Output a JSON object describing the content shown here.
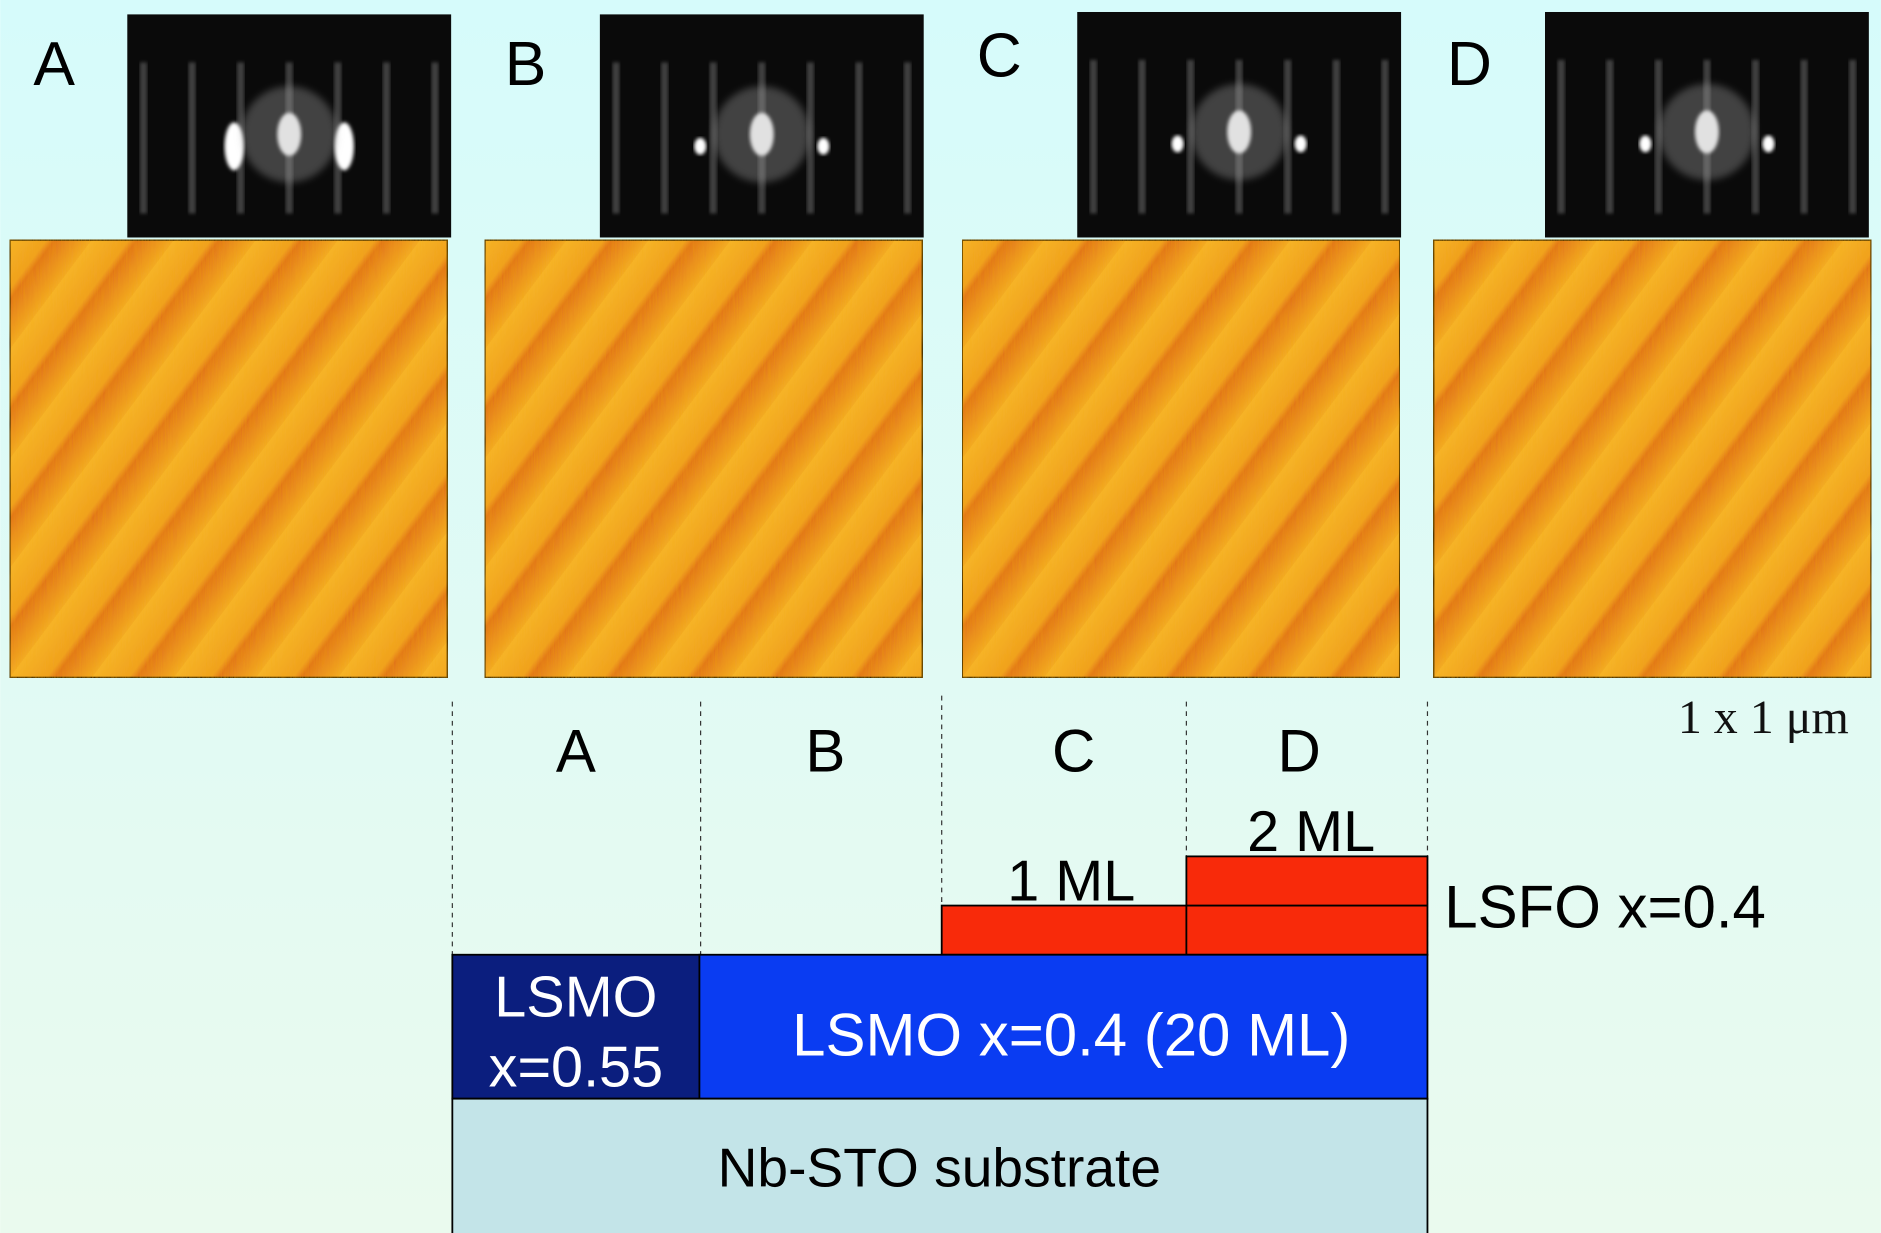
{
  "panels": [
    {
      "label": "A"
    },
    {
      "label": "B"
    },
    {
      "label": "C"
    },
    {
      "label": "D"
    }
  ],
  "scale_label": "1 x 1 μm",
  "schematic": {
    "columns": [
      "A",
      "B",
      "C",
      "D"
    ],
    "layers": {
      "lsfo_1ml": "1 ML",
      "lsfo_2ml": "2 ML",
      "lsfo": "LSFO x=0.4",
      "lsmo_055": [
        "LSMO",
        "x=0.55"
      ],
      "lsmo_04": "LSMO x=0.4 (20 ML)",
      "substrate": "Nb-STO substrate"
    }
  }
}
